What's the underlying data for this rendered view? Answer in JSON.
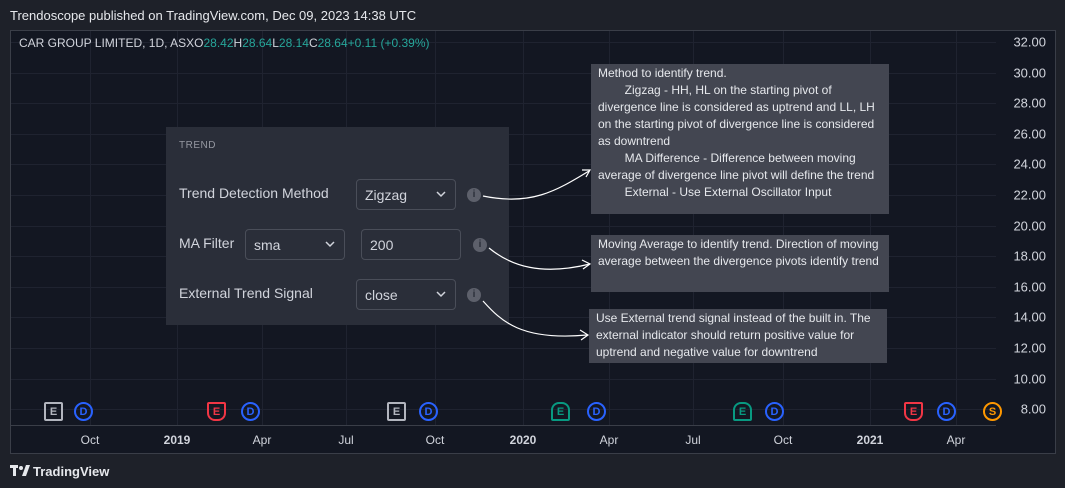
{
  "header": {
    "publish_text": "Trendoscope published on TradingView.com, Dec 09, 2023 14:38 UTC"
  },
  "legend": {
    "symbol": "CAR GROUP LIMITED, 1D, ASX",
    "o_label": "O",
    "o_value": "28.42",
    "h_label": "H",
    "h_value": "28.64",
    "l_label": "L",
    "l_value": "28.14",
    "c_label": "C",
    "c_value": "28.64",
    "change": "+0.11 (+0.39%)",
    "change_color": "#26a69a"
  },
  "price_scale": [
    "32.00",
    "30.00",
    "28.00",
    "26.00",
    "24.00",
    "22.00",
    "20.00",
    "18.00",
    "16.00",
    "14.00",
    "12.00",
    "10.00",
    "8.00"
  ],
  "time_scale": [
    {
      "label": "Oct",
      "bold": false
    },
    {
      "label": "2019",
      "bold": true
    },
    {
      "label": "Apr",
      "bold": false
    },
    {
      "label": "Jul",
      "bold": false
    },
    {
      "label": "Oct",
      "bold": false
    },
    {
      "label": "2020",
      "bold": true
    },
    {
      "label": "Apr",
      "bold": false
    },
    {
      "label": "Jul",
      "bold": false
    },
    {
      "label": "Oct",
      "bold": false
    },
    {
      "label": "2021",
      "bold": true
    },
    {
      "label": "Apr",
      "bold": false
    }
  ],
  "events": [
    {
      "letter": "E",
      "kind": "earnings-neutral"
    },
    {
      "letter": "D",
      "kind": "dividend"
    },
    {
      "letter": "E",
      "kind": "earnings-miss"
    },
    {
      "letter": "D",
      "kind": "dividend"
    },
    {
      "letter": "E",
      "kind": "earnings-neutral"
    },
    {
      "letter": "D",
      "kind": "dividend"
    },
    {
      "letter": "E",
      "kind": "earnings-beat"
    },
    {
      "letter": "D",
      "kind": "dividend"
    },
    {
      "letter": "E",
      "kind": "earnings-beat"
    },
    {
      "letter": "D",
      "kind": "dividend"
    },
    {
      "letter": "E",
      "kind": "earnings-miss"
    },
    {
      "letter": "D",
      "kind": "dividend"
    },
    {
      "letter": "S",
      "kind": "split"
    }
  ],
  "settings": {
    "section_title": "TREND",
    "trend_method_label": "Trend Detection Method",
    "trend_method_value": "Zigzag",
    "ma_filter_label": "MA Filter",
    "ma_filter_type": "sma",
    "ma_filter_length": "200",
    "external_signal_label": "External Trend Signal",
    "external_signal_value": "close",
    "info_glyph": "i"
  },
  "tooltips": {
    "trend_method": "Method to identify trend.\n        Zigzag - HH, HL on the starting pivot of divergence line is considered as uptrend and LL, LH on the starting pivot of divergence line is considered as downtrend\n        MA Difference - Difference between moving average of divergence line pivot will define the trend\n        External - Use External Oscillator Input",
    "ma_filter": "Moving Average to identify trend. Direction of moving average between the divergence pivots identify trend",
    "external_signal": "Use External trend signal instead of the built in. The external indicator should return positive value for uptrend and negative value for downtrend"
  },
  "footer": {
    "brand": "TradingView"
  },
  "colors": {
    "background": "#131722",
    "panel": "#2a2e39",
    "tooltip": "#434651",
    "up": "#26a69a"
  }
}
